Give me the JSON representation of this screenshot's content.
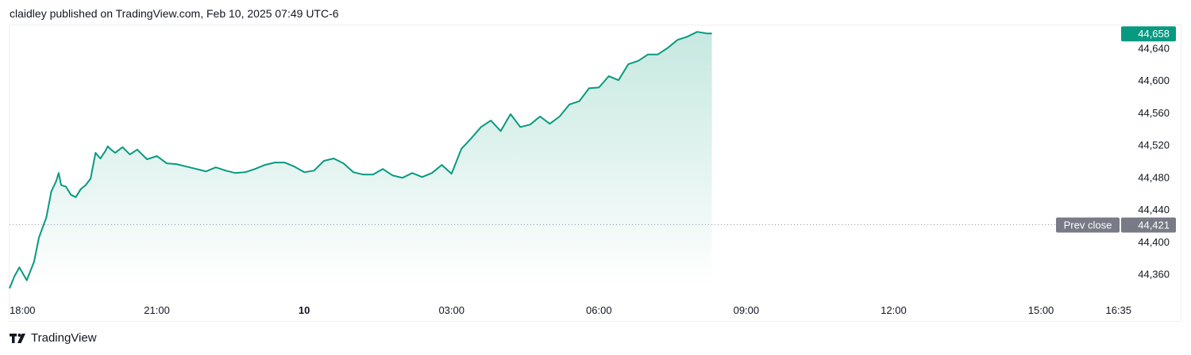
{
  "header": {
    "published_text": "claidley published on TradingView.com, Feb 10, 2025 07:49 UTC-6"
  },
  "brand": {
    "logo_icon": "tradingview-logo-icon",
    "name": "TradingView"
  },
  "colors": {
    "line": "#089981",
    "area_top": "#c6e8e0",
    "area_bottom": "#ffffff",
    "prev_close_badge": "#787b86",
    "last_price_badge": "#089981",
    "grid_dots": "#9598a1"
  },
  "chart_data": {
    "type": "area",
    "x_unit": "hours since 18:00 (Feb 9, UTC-6)",
    "xlim": [
      0,
      22.6
    ],
    "ylim": [
      44335,
      44669
    ],
    "y_ticks": [
      44360,
      44400,
      44440,
      44480,
      44520,
      44560,
      44600,
      44640
    ],
    "y_tick_labels": [
      "44,360",
      "44,400",
      "44,440",
      "44,480",
      "44,520",
      "44,560",
      "44,600",
      "44,640"
    ],
    "x_ticks": [
      {
        "x": 0,
        "label": "18:00",
        "bold": false
      },
      {
        "x": 3,
        "label": "21:00",
        "bold": false
      },
      {
        "x": 6,
        "label": "10",
        "bold": true
      },
      {
        "x": 9,
        "label": "03:00",
        "bold": false
      },
      {
        "x": 12,
        "label": "06:00",
        "bold": false
      },
      {
        "x": 15,
        "label": "09:00",
        "bold": false
      },
      {
        "x": 18,
        "label": "12:00",
        "bold": false
      },
      {
        "x": 21,
        "label": "15:00",
        "bold": false
      },
      {
        "x": 22.58,
        "label": "16:35",
        "bold": false
      }
    ],
    "prev_close": {
      "label": "Prev close",
      "value": 44421,
      "value_label": "44,421"
    },
    "last_price": {
      "value": 44658,
      "value_label": "44,658"
    },
    "series": [
      {
        "x": [
          0,
          0.1,
          0.2,
          0.35,
          0.5,
          0.6,
          0.75,
          0.85,
          0.95,
          1.0,
          1.05,
          1.15,
          1.25,
          1.35,
          1.45,
          1.55,
          1.65,
          1.75,
          1.85,
          1.95,
          2.0,
          2.05,
          2.15,
          2.3,
          2.45,
          2.6,
          2.8,
          3.0,
          3.2,
          3.4,
          3.6,
          3.8,
          4.0,
          4.2,
          4.4,
          4.6,
          4.8,
          5.0,
          5.2,
          5.4,
          5.6,
          5.8,
          6.0,
          6.2,
          6.4,
          6.6,
          6.8,
          7.0,
          7.2,
          7.4,
          7.6,
          7.8,
          8.0,
          8.2,
          8.4,
          8.6,
          8.8,
          9.0,
          9.2,
          9.4,
          9.6,
          9.8,
          10.0,
          10.2,
          10.4,
          10.6,
          10.8,
          11.0,
          11.2,
          11.4,
          11.6,
          11.8,
          12.0,
          12.2,
          12.4,
          12.6,
          12.8,
          13.0,
          13.2,
          13.4,
          13.6,
          13.8,
          14.0,
          14.2,
          14.3
        ],
        "values": [
          44342,
          44357,
          44368,
          44352,
          44375,
          44405,
          44430,
          44462,
          44475,
          44485,
          44470,
          44468,
          44458,
          44455,
          44465,
          44470,
          44478,
          44510,
          44503,
          44512,
          44518,
          44515,
          44510,
          44517,
          44508,
          44514,
          44502,
          44506,
          44497,
          44496,
          44493,
          44490,
          44487,
          44492,
          44488,
          44485,
          44486,
          44490,
          44495,
          44498,
          44498,
          44493,
          44486,
          44488,
          44500,
          44503,
          44497,
          44486,
          44483,
          44483,
          44490,
          44482,
          44479,
          44485,
          44480,
          44485,
          44495,
          44484,
          44515,
          44528,
          44542,
          44550,
          44537,
          44558,
          44542,
          44545,
          44555,
          44546,
          44555,
          44570,
          44574,
          44590,
          44591,
          44605,
          44600,
          44620,
          44624,
          44632,
          44632,
          44640,
          44650,
          44654,
          44660,
          44658,
          44658
        ]
      }
    ]
  }
}
